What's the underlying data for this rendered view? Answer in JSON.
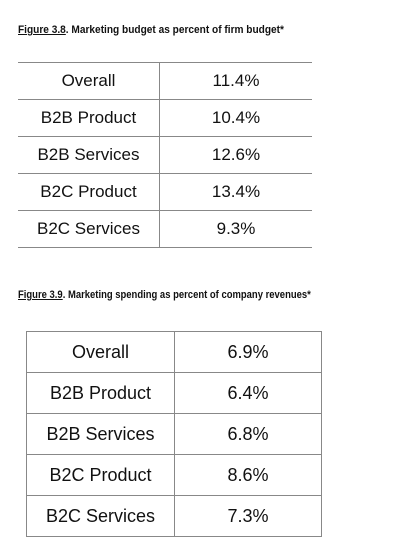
{
  "figure1": {
    "number": "Figure 3.8",
    "title": ".  Marketing budget as percent of firm budget*",
    "rows": [
      {
        "label": "Overall",
        "value": "11.4%"
      },
      {
        "label": "B2B Product",
        "value": "10.4%"
      },
      {
        "label": "B2B Services",
        "value": "12.6%"
      },
      {
        "label": "B2C Product",
        "value": "13.4%"
      },
      {
        "label": "B2C Services",
        "value": "9.3%"
      }
    ]
  },
  "figure2": {
    "number": "Figure 3.9",
    "title": ".  Marketing spending as percent of company revenues*",
    "rows": [
      {
        "label": "Overall",
        "value": "6.9%"
      },
      {
        "label": "B2B Product",
        "value": "6.4%"
      },
      {
        "label": "B2B Services",
        "value": "6.8%"
      },
      {
        "label": "B2C Product",
        "value": "8.6%"
      },
      {
        "label": "B2C Services",
        "value": "7.3%"
      }
    ]
  }
}
